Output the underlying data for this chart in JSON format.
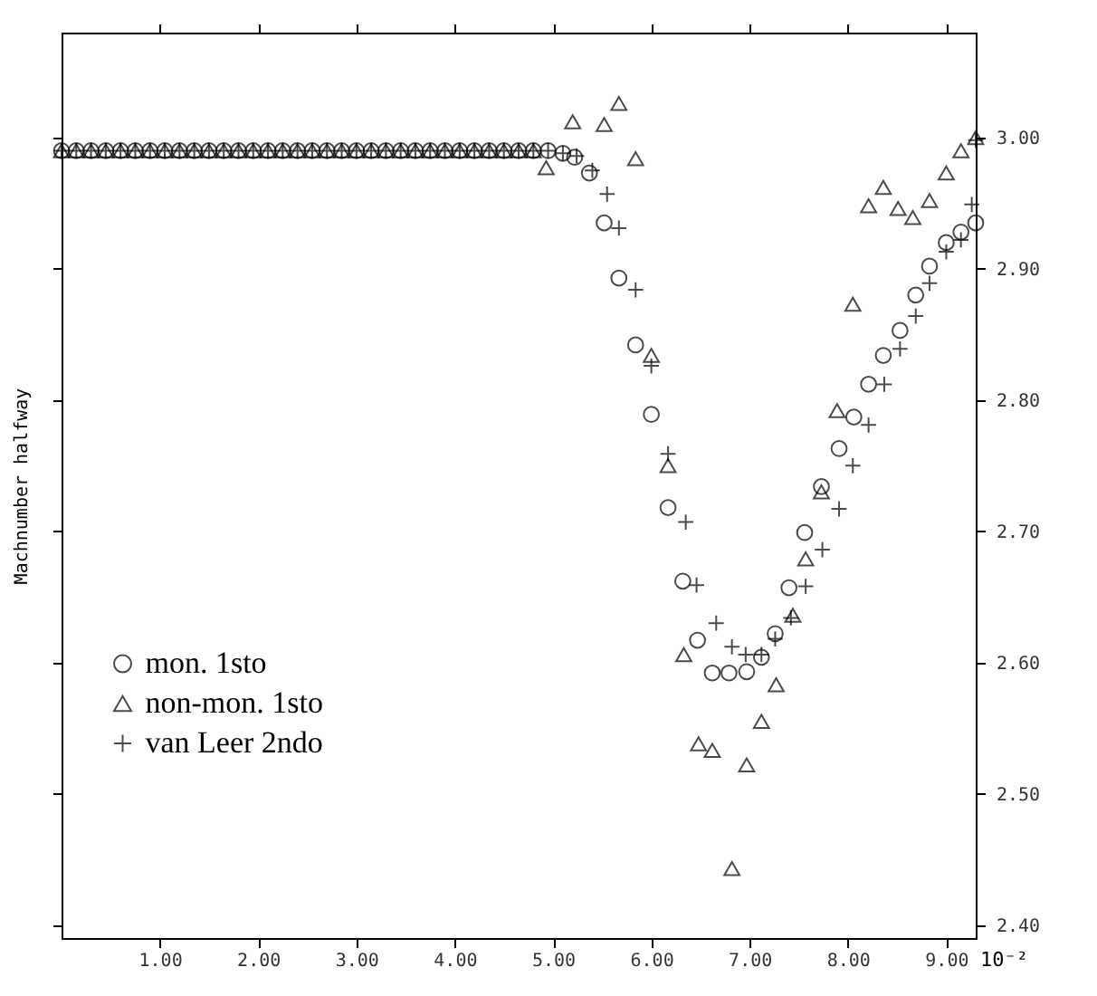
{
  "chart_data": {
    "type": "scatter",
    "xlabel": "10⁻²",
    "ylabel": "Machnumber    halfway",
    "xlim": [
      0,
      9.3
    ],
    "ylim": [
      2.39,
      3.08
    ],
    "xticks": [
      {
        "value": 1,
        "label": "1.00"
      },
      {
        "value": 2,
        "label": "2.00"
      },
      {
        "value": 3,
        "label": "3.00"
      },
      {
        "value": 4,
        "label": "4.00"
      },
      {
        "value": 5,
        "label": "5.00"
      },
      {
        "value": 6,
        "label": "6.00"
      },
      {
        "value": 7,
        "label": "7.00"
      },
      {
        "value": 8,
        "label": "8.00"
      },
      {
        "value": 9,
        "label": "9.00"
      }
    ],
    "yticks": [
      {
        "value": 2.4,
        "label": "2.40"
      },
      {
        "value": 2.5,
        "label": "2.50"
      },
      {
        "value": 2.6,
        "label": "2.60"
      },
      {
        "value": 2.7,
        "label": "2.70"
      },
      {
        "value": 2.8,
        "label": "2.80"
      },
      {
        "value": 2.9,
        "label": "2.90"
      },
      {
        "value": 3.0,
        "label": "3.00"
      }
    ],
    "legend": "bottom left",
    "grid": false,
    "series": [
      {
        "name": "mon. 1sto",
        "color": "#000000",
        "marker": "circle",
        "x": [
          0,
          0.15,
          0.3,
          0.45,
          0.6,
          0.75,
          0.9,
          1.05,
          1.2,
          1.35,
          1.5,
          1.65,
          1.8,
          1.95,
          2.1,
          2.25,
          2.4,
          2.55,
          2.7,
          2.85,
          3.0,
          3.15,
          3.3,
          3.45,
          3.6,
          3.75,
          3.9,
          4.05,
          4.2,
          4.35,
          4.5,
          4.65,
          4.8,
          4.95,
          5.1,
          5.22,
          5.37,
          5.52,
          5.67,
          5.84,
          6.0,
          6.17,
          6.32,
          6.47,
          6.62,
          6.79,
          6.97,
          7.12,
          7.26,
          7.4,
          7.56,
          7.73,
          7.91,
          8.06,
          8.21,
          8.36,
          8.53,
          8.69,
          8.83,
          9.0,
          9.15,
          9.3
        ],
        "values": [
          2.99,
          2.99,
          2.99,
          2.99,
          2.99,
          2.99,
          2.99,
          2.99,
          2.99,
          2.99,
          2.99,
          2.99,
          2.99,
          2.99,
          2.99,
          2.99,
          2.99,
          2.99,
          2.99,
          2.99,
          2.99,
          2.99,
          2.99,
          2.99,
          2.99,
          2.99,
          2.99,
          2.99,
          2.99,
          2.99,
          2.99,
          2.99,
          2.99,
          2.99,
          2.988,
          2.985,
          2.973,
          2.935,
          2.893,
          2.842,
          2.789,
          2.718,
          2.662,
          2.617,
          2.592,
          2.592,
          2.593,
          2.604,
          2.622,
          2.657,
          2.699,
          2.734,
          2.763,
          2.787,
          2.812,
          2.834,
          2.853,
          2.88,
          2.902,
          2.92,
          2.928,
          2.935
        ]
      },
      {
        "name": "non-mon. 1sto",
        "color": "#000000",
        "marker": "triangle",
        "x": [
          0,
          0.15,
          0.3,
          0.45,
          0.6,
          0.75,
          0.9,
          1.05,
          1.2,
          1.35,
          1.5,
          1.65,
          1.8,
          1.95,
          2.1,
          2.25,
          2.4,
          2.55,
          2.7,
          2.85,
          3.0,
          3.15,
          3.3,
          3.45,
          3.6,
          3.75,
          3.9,
          4.05,
          4.2,
          4.35,
          4.5,
          4.65,
          4.8,
          4.93,
          5.2,
          5.52,
          5.67,
          5.84,
          6.0,
          6.17,
          6.33,
          6.48,
          6.62,
          6.82,
          6.97,
          7.12,
          7.27,
          7.44,
          7.57,
          7.73,
          7.89,
          8.05,
          8.21,
          8.36,
          8.51,
          8.66,
          8.83,
          9.0,
          9.15,
          9.3
        ],
        "values": [
          2.99,
          2.99,
          2.99,
          2.99,
          2.99,
          2.99,
          2.99,
          2.99,
          2.99,
          2.99,
          2.99,
          2.99,
          2.99,
          2.99,
          2.99,
          2.99,
          2.99,
          2.99,
          2.99,
          2.99,
          2.99,
          2.99,
          2.99,
          2.99,
          2.99,
          2.99,
          2.99,
          2.99,
          2.99,
          2.99,
          2.99,
          2.99,
          2.99,
          2.977,
          3.012,
          3.01,
          3.026,
          2.984,
          2.834,
          2.75,
          2.606,
          2.538,
          2.533,
          2.443,
          2.522,
          2.555,
          2.583,
          2.636,
          2.679,
          2.73,
          2.792,
          2.873,
          2.948,
          2.962,
          2.946,
          2.939,
          2.952,
          2.973,
          2.99,
          3.0
        ]
      },
      {
        "name": "van Leer 2ndo",
        "color": "#000000",
        "marker": "cross",
        "x": [
          0,
          0.15,
          0.3,
          0.45,
          0.6,
          0.75,
          0.9,
          1.05,
          1.2,
          1.35,
          1.5,
          1.65,
          1.8,
          1.95,
          2.1,
          2.25,
          2.4,
          2.55,
          2.7,
          2.85,
          3.0,
          3.15,
          3.3,
          3.45,
          3.6,
          3.75,
          3.9,
          4.05,
          4.2,
          4.35,
          4.5,
          4.65,
          4.8,
          4.95,
          5.1,
          5.24,
          5.4,
          5.55,
          5.67,
          5.84,
          6.0,
          6.17,
          6.35,
          6.46,
          6.66,
          6.82,
          6.96,
          7.12,
          7.26,
          7.42,
          7.57,
          7.74,
          7.91,
          8.05,
          8.21,
          8.37,
          8.53,
          8.69,
          8.83,
          9.0,
          9.15,
          9.26,
          9.3
        ],
        "values": [
          2.99,
          2.99,
          2.99,
          2.99,
          2.99,
          2.99,
          2.99,
          2.99,
          2.99,
          2.99,
          2.99,
          2.99,
          2.99,
          2.99,
          2.99,
          2.99,
          2.99,
          2.99,
          2.99,
          2.99,
          2.99,
          2.99,
          2.99,
          2.99,
          2.99,
          2.99,
          2.99,
          2.99,
          2.99,
          2.99,
          2.99,
          2.99,
          2.99,
          2.99,
          2.988,
          2.986,
          2.975,
          2.957,
          2.931,
          2.884,
          2.826,
          2.759,
          2.707,
          2.659,
          2.63,
          2.612,
          2.606,
          2.606,
          2.618,
          2.634,
          2.658,
          2.686,
          2.717,
          2.75,
          2.781,
          2.812,
          2.839,
          2.864,
          2.889,
          2.913,
          2.922,
          2.949,
          2.998
        ]
      }
    ]
  }
}
